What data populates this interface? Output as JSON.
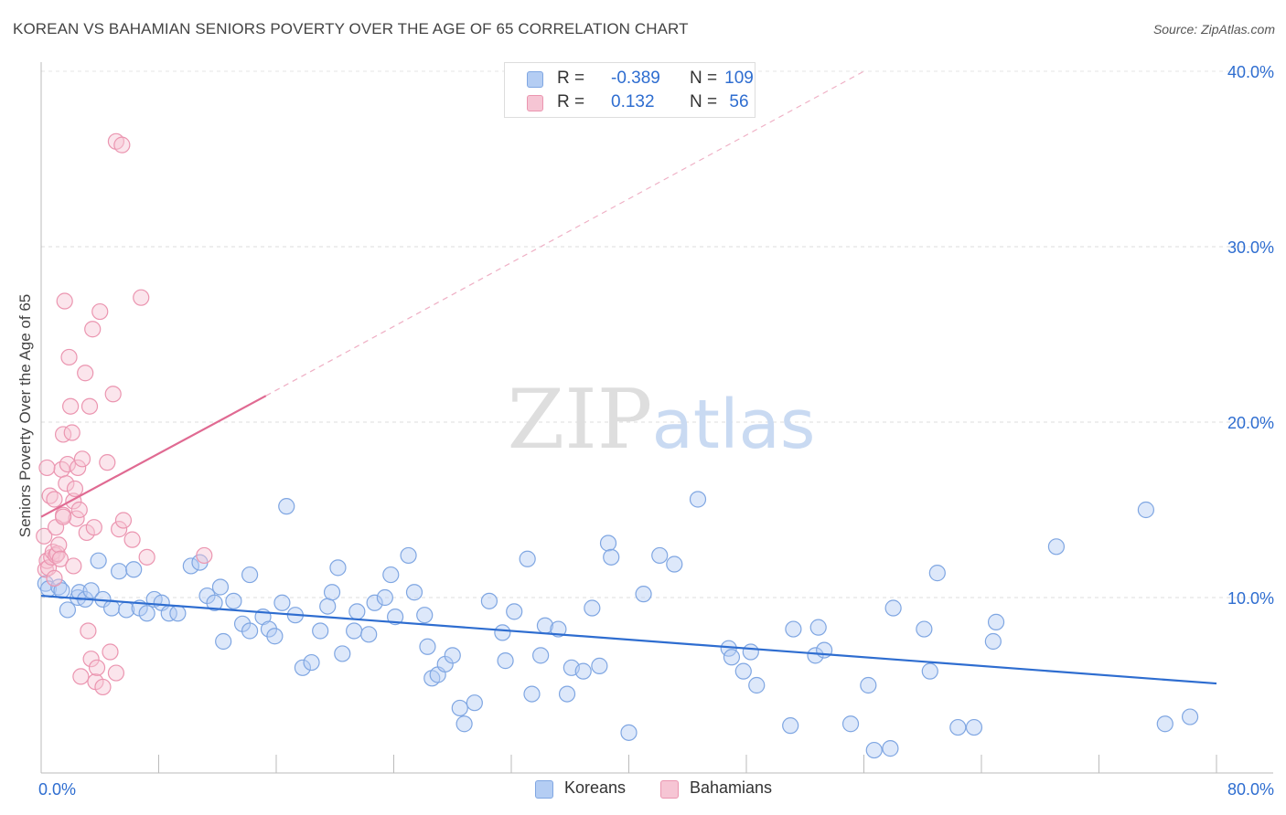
{
  "header": {
    "title": "KOREAN VS BAHAMIAN SENIORS POVERTY OVER THE AGE OF 65 CORRELATION CHART",
    "source": "Source: ZipAtlas.com"
  },
  "watermark": {
    "zip": "ZIP",
    "atlas": "atlas"
  },
  "legend": {
    "r_label": "R =",
    "n_label": "N =",
    "rows": [
      {
        "series": "Koreans",
        "r": "-0.389",
        "n": "109",
        "color": "#7fa6e2"
      },
      {
        "series": "Bahamians",
        "r": "0.132",
        "n": "56",
        "color": "#eb95b0"
      }
    ]
  },
  "bottom_legend": {
    "koreans": "Koreans",
    "bahamians": "Bahamians"
  },
  "chart_data": {
    "type": "scatter",
    "title": "KOREAN VS BAHAMIAN SENIORS POVERTY OVER THE AGE OF 65 CORRELATION CHART",
    "xlabel": "",
    "ylabel": "Seniors Poverty Over the Age of 65",
    "xlim": [
      0,
      80
    ],
    "ylim": [
      0,
      40
    ],
    "x_ticks": [
      "0.0%",
      "80.0%"
    ],
    "y_ticks": [
      "10.0%",
      "20.0%",
      "30.0%",
      "40.0%"
    ],
    "y_tick_values": [
      10,
      20,
      30,
      40
    ],
    "grid": "horizontal dashed",
    "legend_position": "top-center",
    "series": [
      {
        "name": "Koreans",
        "color": "#7fa6e2",
        "trend": {
          "x": [
            0,
            80
          ],
          "y": [
            10.1,
            5.1
          ],
          "style": "solid",
          "color": "#2e6dd0"
        },
        "points": [
          [
            0.3,
            10.8
          ],
          [
            0.5,
            10.5
          ],
          [
            1.2,
            10.6
          ],
          [
            1.4,
            10.4
          ],
          [
            1.8,
            9.3
          ],
          [
            2.5,
            10.0
          ],
          [
            2.6,
            10.3
          ],
          [
            3.0,
            9.9
          ],
          [
            3.4,
            10.4
          ],
          [
            3.9,
            12.1
          ],
          [
            4.2,
            9.9
          ],
          [
            4.8,
            9.4
          ],
          [
            5.3,
            11.5
          ],
          [
            5.8,
            9.3
          ],
          [
            6.3,
            11.6
          ],
          [
            6.7,
            9.4
          ],
          [
            7.2,
            9.1
          ],
          [
            7.7,
            9.9
          ],
          [
            8.2,
            9.7
          ],
          [
            8.7,
            9.1
          ],
          [
            9.3,
            9.1
          ],
          [
            10.2,
            11.8
          ],
          [
            10.8,
            12.0
          ],
          [
            11.3,
            10.1
          ],
          [
            11.8,
            9.7
          ],
          [
            12.2,
            10.6
          ],
          [
            12.4,
            7.5
          ],
          [
            13.1,
            9.8
          ],
          [
            13.7,
            8.5
          ],
          [
            14.2,
            8.1
          ],
          [
            14.2,
            11.3
          ],
          [
            15.1,
            8.9
          ],
          [
            15.5,
            8.2
          ],
          [
            15.9,
            7.8
          ],
          [
            16.4,
            9.7
          ],
          [
            16.7,
            15.2
          ],
          [
            17.3,
            9.0
          ],
          [
            17.8,
            6.0
          ],
          [
            18.4,
            6.3
          ],
          [
            19.0,
            8.1
          ],
          [
            19.5,
            9.5
          ],
          [
            19.8,
            10.3
          ],
          [
            20.2,
            11.7
          ],
          [
            20.5,
            6.8
          ],
          [
            21.3,
            8.1
          ],
          [
            21.5,
            9.2
          ],
          [
            22.3,
            7.9
          ],
          [
            22.7,
            9.7
          ],
          [
            23.4,
            10.0
          ],
          [
            23.8,
            11.3
          ],
          [
            24.1,
            8.9
          ],
          [
            25.0,
            12.4
          ],
          [
            25.4,
            10.3
          ],
          [
            26.1,
            9.0
          ],
          [
            26.3,
            7.2
          ],
          [
            26.6,
            5.4
          ],
          [
            27.0,
            5.6
          ],
          [
            27.5,
            6.2
          ],
          [
            28.0,
            6.7
          ],
          [
            28.5,
            3.7
          ],
          [
            28.8,
            2.8
          ],
          [
            29.5,
            4.0
          ],
          [
            30.5,
            9.8
          ],
          [
            31.4,
            8.0
          ],
          [
            31.6,
            6.4
          ],
          [
            32.2,
            9.2
          ],
          [
            33.1,
            12.2
          ],
          [
            33.4,
            4.5
          ],
          [
            34.0,
            6.7
          ],
          [
            34.3,
            8.4
          ],
          [
            35.2,
            8.2
          ],
          [
            35.8,
            4.5
          ],
          [
            36.1,
            6.0
          ],
          [
            36.9,
            5.8
          ],
          [
            37.5,
            9.4
          ],
          [
            38.0,
            6.1
          ],
          [
            38.6,
            13.1
          ],
          [
            38.8,
            12.3
          ],
          [
            40.0,
            2.3
          ],
          [
            41.0,
            10.2
          ],
          [
            42.1,
            12.4
          ],
          [
            43.1,
            11.9
          ],
          [
            44.7,
            15.6
          ],
          [
            46.8,
            7.1
          ],
          [
            47.0,
            6.6
          ],
          [
            47.8,
            5.8
          ],
          [
            48.3,
            6.9
          ],
          [
            48.7,
            5.0
          ],
          [
            51.0,
            2.7
          ],
          [
            51.2,
            8.2
          ],
          [
            52.7,
            6.7
          ],
          [
            52.9,
            8.3
          ],
          [
            53.3,
            7.0
          ],
          [
            55.1,
            2.8
          ],
          [
            56.3,
            5.0
          ],
          [
            56.7,
            1.3
          ],
          [
            58.0,
            9.4
          ],
          [
            57.8,
            1.4
          ],
          [
            60.1,
            8.2
          ],
          [
            60.5,
            5.8
          ],
          [
            61.0,
            11.4
          ],
          [
            62.4,
            2.6
          ],
          [
            63.5,
            2.6
          ],
          [
            64.8,
            7.5
          ],
          [
            65.0,
            8.6
          ],
          [
            69.1,
            12.9
          ],
          [
            75.2,
            15.0
          ],
          [
            76.5,
            2.8
          ],
          [
            78.2,
            3.2
          ]
        ]
      },
      {
        "name": "Bahamians",
        "color": "#eb95b0",
        "trend": {
          "x": [
            0,
            15.3,
            56
          ],
          "y": [
            14.6,
            21.5,
            40.0
          ],
          "style": "solid to dashed",
          "color": "#e06a92"
        },
        "points": [
          [
            0.2,
            13.5
          ],
          [
            0.3,
            11.6
          ],
          [
            0.4,
            12.1
          ],
          [
            0.5,
            11.7
          ],
          [
            0.6,
            15.8
          ],
          [
            0.7,
            12.3
          ],
          [
            0.8,
            12.6
          ],
          [
            0.9,
            11.1
          ],
          [
            1.0,
            12.4
          ],
          [
            1.1,
            12.5
          ],
          [
            1.2,
            13.0
          ],
          [
            1.3,
            12.2
          ],
          [
            1.4,
            17.3
          ],
          [
            1.5,
            14.7
          ],
          [
            1.5,
            19.3
          ],
          [
            1.6,
            26.9
          ],
          [
            1.7,
            16.5
          ],
          [
            1.8,
            17.6
          ],
          [
            1.9,
            23.7
          ],
          [
            2.0,
            20.9
          ],
          [
            2.1,
            19.4
          ],
          [
            2.2,
            15.5
          ],
          [
            2.3,
            16.2
          ],
          [
            2.4,
            14.5
          ],
          [
            2.5,
            17.4
          ],
          [
            2.6,
            15.0
          ],
          [
            2.7,
            5.5
          ],
          [
            2.8,
            17.9
          ],
          [
            3.0,
            22.8
          ],
          [
            3.1,
            13.7
          ],
          [
            3.2,
            8.1
          ],
          [
            3.3,
            20.9
          ],
          [
            3.4,
            6.5
          ],
          [
            3.5,
            25.3
          ],
          [
            3.6,
            14.0
          ],
          [
            3.7,
            5.2
          ],
          [
            3.8,
            6.0
          ],
          [
            4.0,
            26.3
          ],
          [
            4.2,
            4.9
          ],
          [
            4.5,
            17.7
          ],
          [
            4.7,
            6.9
          ],
          [
            4.9,
            21.6
          ],
          [
            5.1,
            5.7
          ],
          [
            5.1,
            36.0
          ],
          [
            5.3,
            13.9
          ],
          [
            5.5,
            35.8
          ],
          [
            5.6,
            14.4
          ],
          [
            6.2,
            13.3
          ],
          [
            6.8,
            27.1
          ],
          [
            7.2,
            12.3
          ],
          [
            11.1,
            12.4
          ],
          [
            0.4,
            17.4
          ],
          [
            1.0,
            14.0
          ],
          [
            1.5,
            14.6
          ],
          [
            2.2,
            11.8
          ],
          [
            0.9,
            15.6
          ]
        ]
      }
    ]
  }
}
